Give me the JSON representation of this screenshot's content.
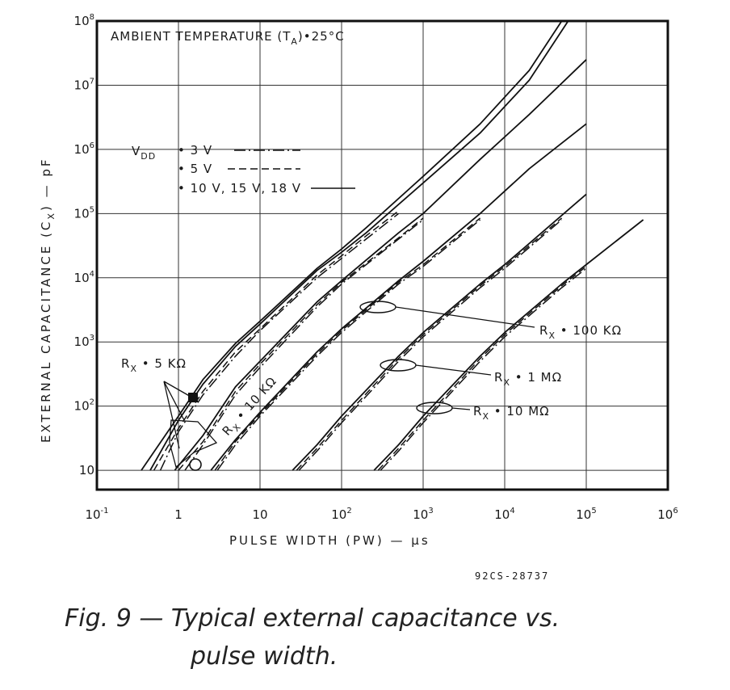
{
  "chart_data": {
    "type": "line",
    "title": "AMBIENT TEMPERATURE (T_A) = 25°C",
    "title_parts": {
      "main": "AMBIENT TEMPERATURE (T",
      "sub": "A",
      "tail": ")•25°C"
    },
    "xlabel": "PULSE WIDTH (PW) — µs",
    "ylabel": "EXTERNAL CAPACITANCE (C_X) — pF",
    "ylabel_parts": {
      "main": "EXTERNAL CAPACITANCE (C",
      "sub": "X",
      "tail": ") — pF"
    },
    "x_scale": "log",
    "y_scale": "log",
    "xlim": [
      0.1,
      1000000
    ],
    "ylim": [
      5,
      100000000
    ],
    "grid": true,
    "x_ticks": [
      {
        "value": 0.1,
        "base": "10",
        "exp": "-1"
      },
      {
        "value": 1,
        "base": "1",
        "exp": ""
      },
      {
        "value": 10,
        "base": "10",
        "exp": ""
      },
      {
        "value": 100,
        "base": "10",
        "exp": "2"
      },
      {
        "value": 1000,
        "base": "10",
        "exp": "3"
      },
      {
        "value": 10000,
        "base": "10",
        "exp": "4"
      },
      {
        "value": 100000,
        "base": "10",
        "exp": "5"
      },
      {
        "value": 1000000,
        "base": "10",
        "exp": "6"
      }
    ],
    "y_ticks": [
      {
        "value": 10,
        "base": "10",
        "exp": ""
      },
      {
        "value": 100,
        "base": "10",
        "exp": "2"
      },
      {
        "value": 1000,
        "base": "10",
        "exp": "3"
      },
      {
        "value": 10000,
        "base": "10",
        "exp": "4"
      },
      {
        "value": 100000,
        "base": "10",
        "exp": "5"
      },
      {
        "value": 1000000,
        "base": "10",
        "exp": "6"
      },
      {
        "value": 10000000,
        "base": "10",
        "exp": "7"
      },
      {
        "value": 100000000,
        "base": "10",
        "exp": "8"
      }
    ],
    "legend": {
      "position": "top-left",
      "heading": "V",
      "heading_sub": "DD",
      "entries": [
        {
          "label": "• 3 V",
          "style": "dash-dot"
        },
        {
          "label": "• 5 V",
          "style": "dashed"
        },
        {
          "label": "• 10 V, 15 V, 18 V",
          "style": "solid"
        }
      ]
    },
    "groups": [
      {
        "label": "R_X • 5 KΩ",
        "label_parts": {
          "main": "R",
          "sub": "X",
          "tail": " • 5 KΩ"
        },
        "series": [
          {
            "vdd": "3 V",
            "style": "dash-dot",
            "x": [
              0.6,
              1,
              2,
              5,
              10,
              50,
              100,
              200,
              500
            ],
            "y": [
              10,
              40,
              150,
              600,
              1500,
              10000,
              20000,
              40000,
              100000
            ]
          },
          {
            "vdd": "5 V",
            "style": "dashed",
            "x": [
              0.5,
              1,
              2,
              5,
              10,
              50,
              100,
              200,
              500
            ],
            "y": [
              10,
              45,
              170,
              700,
              1600,
              11000,
              22000,
              45000,
              110000
            ]
          },
          {
            "vdd": "10 V, 15 V, 18 V",
            "style": "solid",
            "x": [
              0.45,
              1,
              2,
              5,
              10,
              50,
              100,
              200,
              1000,
              5000,
              20000,
              60000
            ],
            "y": [
              10,
              60,
              220,
              850,
              1900,
              13000,
              25000,
              50000,
              300000,
              1800000,
              12000000,
              100000000
            ]
          },
          {
            "vdd": "10 V, 15 V, 18 V",
            "style": "solid",
            "x": [
              0.35,
              1,
              2,
              5,
              10,
              50,
              100,
              200,
              1000,
              5000,
              20000,
              50000
            ],
            "y": [
              10,
              70,
              260,
              950,
              2100,
              14000,
              28000,
              60000,
              380000,
              2500000,
              17000000,
              100000000
            ]
          }
        ]
      },
      {
        "label": "R_X • 10 KΩ",
        "label_parts": {
          "main": "R",
          "sub": "X",
          "tail": " • 10 KΩ"
        },
        "series": [
          {
            "vdd": "3 V",
            "style": "dash-dot",
            "x": [
              1.2,
              2,
              5,
              10,
              50,
              100,
              500,
              1000
            ],
            "y": [
              10,
              25,
              150,
              400,
              3500,
              8000,
              40000,
              80000
            ]
          },
          {
            "vdd": "5 V",
            "style": "dashed",
            "x": [
              1,
              2,
              5,
              10,
              50,
              100,
              500,
              1000
            ],
            "y": [
              10,
              28,
              170,
              450,
              3800,
              8500,
              42000,
              85000
            ]
          },
          {
            "vdd": "10 V, 15 V, 18 V",
            "style": "solid",
            "x": [
              0.9,
              2,
              5,
              10,
              50,
              100,
              500,
              1000,
              5000,
              20000,
              100000
            ],
            "y": [
              10,
              35,
              200,
              500,
              4200,
              9000,
              50000,
              100000,
              700000,
              3500000,
              25000000
            ]
          }
        ]
      },
      {
        "label": "R_X • 100 KΩ",
        "label_parts": {
          "main": "R",
          "sub": "X",
          "tail": " • 100 KΩ"
        },
        "series": [
          {
            "vdd": "3 V",
            "style": "dash-dot",
            "x": [
              3,
              5,
              10,
              50,
              100,
              500,
              1000,
              5000
            ],
            "y": [
              10,
              25,
              70,
              600,
              1400,
              8000,
              15000,
              80000
            ]
          },
          {
            "vdd": "5 V",
            "style": "dashed",
            "x": [
              2.8,
              5,
              10,
              50,
              100,
              500,
              1000,
              5000
            ],
            "y": [
              10,
              28,
              75,
              650,
              1500,
              8500,
              16000,
              85000
            ]
          },
          {
            "vdd": "10 V, 15 V, 18 V",
            "style": "solid",
            "x": [
              2.5,
              5,
              10,
              50,
              100,
              500,
              1000,
              5000,
              20000,
              100000
            ],
            "y": [
              10,
              30,
              80,
              700,
              1600,
              9000,
              18000,
              100000,
              500000,
              2500000
            ]
          }
        ]
      },
      {
        "label": "R_X • 1 MΩ",
        "label_parts": {
          "main": "R",
          "sub": "X",
          "tail": " • 1 MΩ"
        },
        "series": [
          {
            "vdd": "3 V",
            "style": "dash-dot",
            "x": [
              30,
              50,
              100,
              500,
              1000,
              5000,
              10000,
              50000
            ],
            "y": [
              10,
              20,
              55,
              500,
              1200,
              7000,
              14000,
              80000
            ]
          },
          {
            "vdd": "5 V",
            "style": "dashed",
            "x": [
              28,
              50,
              100,
              500,
              1000,
              5000,
              10000,
              50000
            ],
            "y": [
              10,
              22,
              60,
              550,
              1300,
              7500,
              15000,
              85000
            ]
          },
          {
            "vdd": "10 V, 15 V, 18 V",
            "style": "solid",
            "x": [
              25,
              50,
              100,
              500,
              1000,
              5000,
              10000,
              100000
            ],
            "y": [
              10,
              25,
              70,
              600,
              1400,
              8000,
              16000,
              200000
            ]
          }
        ]
      },
      {
        "label": "R_X • 10 MΩ",
        "label_parts": {
          "main": "R",
          "sub": "X",
          "tail": " • 10 MΩ"
        },
        "series": [
          {
            "vdd": "3 V",
            "style": "dash-dot",
            "x": [
              300,
              500,
              1000,
              5000,
              10000,
              50000,
              100000
            ],
            "y": [
              10,
              20,
              55,
              500,
              1200,
              7000,
              14000
            ]
          },
          {
            "vdd": "5 V",
            "style": "dashed",
            "x": [
              280,
              500,
              1000,
              5000,
              10000,
              50000,
              100000
            ],
            "y": [
              10,
              22,
              60,
              550,
              1300,
              7500,
              15000
            ]
          },
          {
            "vdd": "10 V, 15 V, 18 V",
            "style": "solid",
            "x": [
              250,
              500,
              1000,
              5000,
              10000,
              50000,
              100000,
              500000
            ],
            "y": [
              10,
              25,
              70,
              600,
              1400,
              8000,
              16000,
              80000
            ]
          }
        ]
      }
    ],
    "figure_number": "92CS-28737"
  },
  "caption": {
    "line1": "Fig. 9 — Typical external capacitance vs.",
    "line2": "pulse width."
  }
}
